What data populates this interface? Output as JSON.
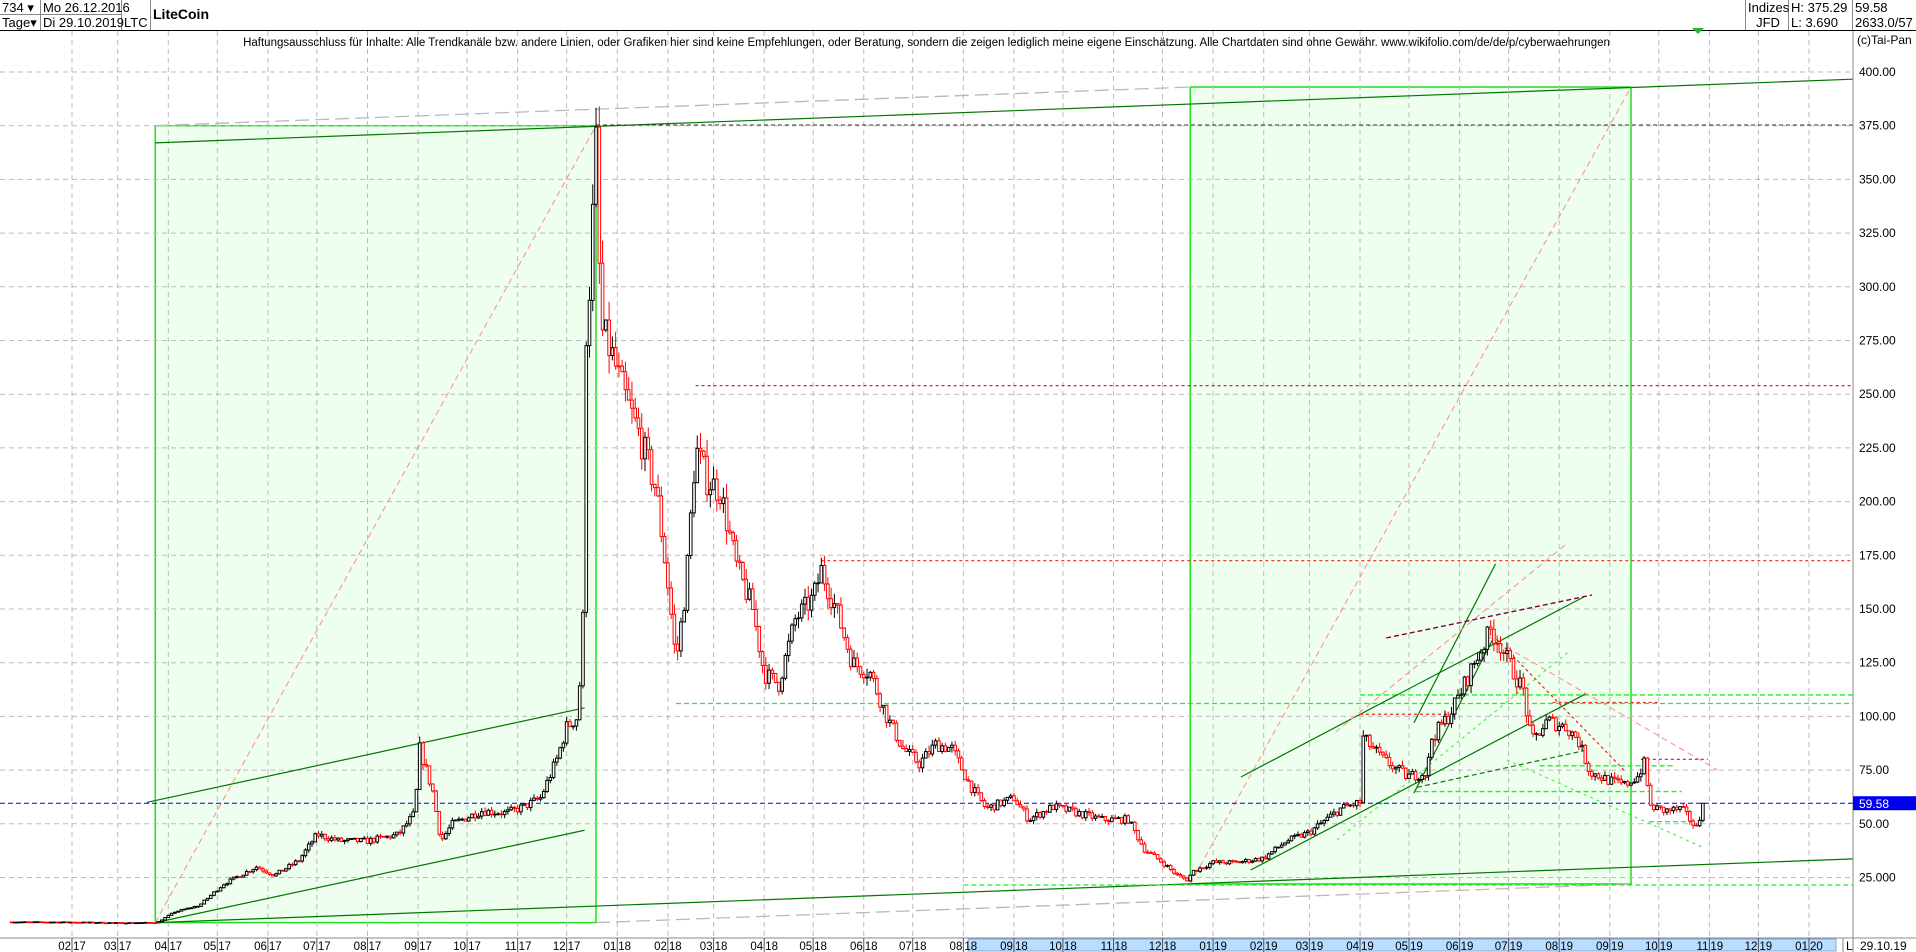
{
  "header": {
    "bars": "734",
    "bars_dropdown": "▾",
    "period": "Tage",
    "period_dropdown": "▾",
    "date_from": "Mo 26.12.2016",
    "date_to": "Di 29.10.2019",
    "symbol": "LTC",
    "title": "LiteCoin",
    "source_top": "Indizes",
    "source_bottom": "JFD",
    "high": "H: 375.29",
    "low": "L: 3.690",
    "last": "59.58",
    "info": "2633.0/57"
  },
  "disclaimer": "Haftungsausschluss für Inhalte: Alle Trendkanäle bzw. andere Linien, oder Grafiken hier sind keine Empfehlungen, oder Beratung, sondern die zeigen lediglich meine eigene Einschätzung. Alle Chartdaten sind ohne Gewähr.  www.wikifolio.com/de/de/p/cyberwaehrungen",
  "copyright": "(c)Tai-Pan",
  "xaxis": {
    "log_label": "L",
    "last_date": "29.10.19"
  },
  "colors": {
    "up": "#000000",
    "down": "#ff0000",
    "box_fill": "#efffef",
    "box_border": "#22dd22",
    "trend": "#007700",
    "last_price": "#0000ee",
    "grid": "#bbbbbb"
  },
  "chart_data": {
    "type": "candlestick",
    "title": "LiteCoin",
    "ylim": [
      0,
      400
    ],
    "yticks": [
      "400.00",
      "375.00",
      "350.00",
      "325.00",
      "300.00",
      "275.00",
      "250.00",
      "225.00",
      "200.00",
      "175.00",
      "150.00",
      "125.00",
      "100.00",
      "75.00",
      "50.00",
      "25.000"
    ],
    "ytick_values": [
      400,
      375,
      350,
      325,
      300,
      275,
      250,
      225,
      200,
      175,
      150,
      125,
      100,
      75,
      50,
      25
    ],
    "xrange": [
      "2016-12-26",
      "2020-01-31"
    ],
    "xticks": [
      [
        "02",
        "17"
      ],
      [
        "03",
        "17"
      ],
      [
        "04",
        "17"
      ],
      [
        "05",
        "17"
      ],
      [
        "06",
        "17"
      ],
      [
        "07",
        "17"
      ],
      [
        "08",
        "17"
      ],
      [
        "09",
        "17"
      ],
      [
        "10",
        "17"
      ],
      [
        "11",
        "17"
      ],
      [
        "12",
        "17"
      ],
      [
        "01",
        "18"
      ],
      [
        "02",
        "18"
      ],
      [
        "03",
        "18"
      ],
      [
        "04",
        "18"
      ],
      [
        "05",
        "18"
      ],
      [
        "06",
        "18"
      ],
      [
        "07",
        "18"
      ],
      [
        "08",
        "18"
      ],
      [
        "09",
        "18"
      ],
      [
        "10",
        "18"
      ],
      [
        "11",
        "18"
      ],
      [
        "12",
        "18"
      ],
      [
        "01",
        "19"
      ],
      [
        "02",
        "19"
      ],
      [
        "03",
        "19"
      ],
      [
        "04",
        "19"
      ],
      [
        "05",
        "19"
      ],
      [
        "06",
        "19"
      ],
      [
        "07",
        "19"
      ],
      [
        "08",
        "19"
      ],
      [
        "09",
        "19"
      ],
      [
        "10",
        "19"
      ],
      [
        "11",
        "19"
      ],
      [
        "12",
        "19"
      ],
      [
        "01",
        "20"
      ]
    ],
    "grid": true,
    "last_price": 59.58,
    "last_price_label": "59.58",
    "close_path": [
      [
        "2016-12-26",
        4.3
      ],
      [
        "2017-02-01",
        4.2
      ],
      [
        "2017-03-01",
        3.9
      ],
      [
        "2017-03-25",
        4.0
      ],
      [
        "2017-04-05",
        9
      ],
      [
        "2017-04-20",
        12
      ],
      [
        "2017-05-05",
        22
      ],
      [
        "2017-05-25",
        30
      ],
      [
        "2017-06-05",
        26
      ],
      [
        "2017-06-20",
        33
      ],
      [
        "2017-07-01",
        45
      ],
      [
        "2017-07-15",
        42
      ],
      [
        "2017-08-01",
        42
      ],
      [
        "2017-08-20",
        45
      ],
      [
        "2017-08-30",
        55
      ],
      [
        "2017-09-02",
        85
      ],
      [
        "2017-09-10",
        65
      ],
      [
        "2017-09-15",
        42
      ],
      [
        "2017-09-22",
        50
      ],
      [
        "2017-10-10",
        56
      ],
      [
        "2017-10-25",
        55
      ],
      [
        "2017-11-05",
        58
      ],
      [
        "2017-11-15",
        62
      ],
      [
        "2017-11-25",
        80
      ],
      [
        "2017-12-01",
        95
      ],
      [
        "2017-12-08",
        100
      ],
      [
        "2017-12-11",
        145
      ],
      [
        "2017-12-13",
        280
      ],
      [
        "2017-12-15",
        300
      ],
      [
        "2017-12-19",
        365
      ],
      [
        "2017-12-22",
        280
      ],
      [
        "2017-12-28",
        270
      ],
      [
        "2018-01-05",
        250
      ],
      [
        "2018-01-15",
        230
      ],
      [
        "2018-01-25",
        205
      ],
      [
        "2018-02-02",
        155
      ],
      [
        "2018-02-06",
        125
      ],
      [
        "2018-02-12",
        160
      ],
      [
        "2018-02-18",
        225
      ],
      [
        "2018-02-25",
        210
      ],
      [
        "2018-03-05",
        205
      ],
      [
        "2018-03-15",
        170
      ],
      [
        "2018-03-25",
        150
      ],
      [
        "2018-04-01",
        120
      ],
      [
        "2018-04-10",
        115
      ],
      [
        "2018-04-20",
        145
      ],
      [
        "2018-05-01",
        155
      ],
      [
        "2018-05-06",
        168
      ],
      [
        "2018-05-15",
        150
      ],
      [
        "2018-05-25",
        125
      ],
      [
        "2018-06-05",
        120
      ],
      [
        "2018-06-15",
        100
      ],
      [
        "2018-06-25",
        85
      ],
      [
        "2018-07-05",
        78
      ],
      [
        "2018-07-15",
        87
      ],
      [
        "2018-07-25",
        85
      ],
      [
        "2018-08-05",
        68
      ],
      [
        "2018-08-15",
        57
      ],
      [
        "2018-09-01",
        62
      ],
      [
        "2018-09-10",
        52
      ],
      [
        "2018-09-25",
        58
      ],
      [
        "2018-10-10",
        55
      ],
      [
        "2018-10-25",
        52
      ],
      [
        "2018-11-10",
        52
      ],
      [
        "2018-11-20",
        38
      ],
      [
        "2018-12-01",
        32
      ],
      [
        "2018-12-10",
        26
      ],
      [
        "2018-12-16",
        24
      ],
      [
        "2018-12-20",
        28
      ],
      [
        "2019-01-01",
        32
      ],
      [
        "2019-01-15",
        32
      ],
      [
        "2019-02-01",
        34
      ],
      [
        "2019-02-15",
        42
      ],
      [
        "2019-03-01",
        46
      ],
      [
        "2019-03-20",
        57
      ],
      [
        "2019-04-01",
        60
      ],
      [
        "2019-04-03",
        90
      ],
      [
        "2019-04-15",
        80
      ],
      [
        "2019-04-30",
        72
      ],
      [
        "2019-05-12",
        74
      ],
      [
        "2019-05-15",
        90
      ],
      [
        "2019-05-25",
        100
      ],
      [
        "2019-06-01",
        110
      ],
      [
        "2019-06-10",
        125
      ],
      [
        "2019-06-20",
        140
      ],
      [
        "2019-06-25",
        135
      ],
      [
        "2019-07-01",
        125
      ],
      [
        "2019-07-10",
        112
      ],
      [
        "2019-07-15",
        88
      ],
      [
        "2019-07-25",
        98
      ],
      [
        "2019-08-05",
        95
      ],
      [
        "2019-08-12",
        90
      ],
      [
        "2019-08-20",
        74
      ],
      [
        "2019-09-01",
        70
      ],
      [
        "2019-09-10",
        68
      ],
      [
        "2019-09-18",
        72
      ],
      [
        "2019-09-22",
        78
      ],
      [
        "2019-09-26",
        58
      ],
      [
        "2019-10-05",
        56
      ],
      [
        "2019-10-15",
        57
      ],
      [
        "2019-10-24",
        48
      ],
      [
        "2019-10-29",
        59.58
      ]
    ],
    "boxes": [
      {
        "from": [
          "2017-03-24",
          4
        ],
        "to": [
          "2017-12-19",
          375
        ]
      },
      {
        "from": [
          "2018-12-18",
          22
        ],
        "to": [
          "2019-09-14",
          393
        ]
      }
    ],
    "lines": [
      {
        "from": [
          "2017-03-24",
          367
        ],
        "to": [
          "2020-03-15",
          398
        ],
        "style": "trend"
      },
      {
        "from": [
          "2017-03-24",
          4
        ],
        "to": [
          "2020-03-15",
          35
        ],
        "style": "trend"
      },
      {
        "from": [
          "2017-03-19",
          60
        ],
        "to": [
          "2017-12-12",
          104
        ],
        "style": "trend"
      },
      {
        "from": [
          "2017-03-24",
          4
        ],
        "to": [
          "2017-12-12",
          47
        ],
        "style": "trend"
      },
      {
        "from": [
          "2017-03-24",
          4
        ],
        "to": [
          "2017-12-19",
          375
        ],
        "style": "pink-dash"
      },
      {
        "from": [
          "2018-12-18",
          22
        ],
        "to": [
          "2019-09-14",
          393
        ],
        "style": "pink-dash"
      },
      {
        "from": [
          "2017-03-24",
          375
        ],
        "to": [
          "2018-12-18",
          393
        ],
        "style": "grey-dash"
      },
      {
        "from": [
          "2017-12-19",
          4
        ],
        "to": [
          "2019-09-14",
          22
        ],
        "style": "grey-dash"
      },
      {
        "from": [
          "2017-12-19",
          375.3
        ],
        "to": [
          "2020-03-15",
          375.3
        ],
        "style": "black-dash"
      },
      {
        "from": [
          "2018-02-18",
          254
        ],
        "to": [
          "2020-03-15",
          254
        ],
        "style": "red-dot"
      },
      {
        "from": [
          "2018-05-06",
          172.5
        ],
        "to": [
          "2020-03-15",
          172.5
        ],
        "style": "red-dot"
      },
      {
        "from": [
          "2018-02-06",
          106
        ],
        "to": [
          "2020-03-15",
          106
        ],
        "style": "green-dash"
      },
      {
        "from": [
          "2019-04-01",
          110
        ],
        "to": [
          "2020-03-15",
          110
        ],
        "style": "green-dash"
      },
      {
        "from": [
          "2018-08-01",
          21.5
        ],
        "to": [
          "2020-03-15",
          21.5
        ],
        "style": "green-dash"
      },
      {
        "from": [
          "2019-01-18",
          71.8
        ],
        "to": [
          "2019-08-16",
          155.6
        ],
        "style": "trend"
      },
      {
        "from": [
          "2019-01-24",
          28.5
        ],
        "to": [
          "2019-08-17",
          110.4
        ],
        "style": "trend"
      },
      {
        "from": [
          "2019-05-04",
          97
        ],
        "to": [
          "2019-06-23",
          171
        ],
        "style": "trend"
      },
      {
        "from": [
          "2019-05-04",
          64.3
        ],
        "to": [
          "2019-06-23",
          138.4
        ],
        "style": "trend"
      },
      {
        "from": [
          "2019-04-17",
          136.5
        ],
        "to": [
          "2019-08-21",
          156.5
        ],
        "style": "maroon-dash"
      },
      {
        "from": [
          "2019-03-17",
          92.7
        ],
        "to": [
          "2019-08-06",
          180.6
        ],
        "style": "pink-dash"
      },
      {
        "from": [
          "2019-06-21",
          138
        ],
        "to": [
          "2019-09-11",
          74
        ],
        "style": "red-dot"
      },
      {
        "from": [
          "2019-06-19",
          137
        ],
        "to": [
          "2019-11-06",
          75
        ],
        "style": "pink-dash"
      },
      {
        "from": [
          "2019-03-18",
          42.5
        ],
        "to": [
          "2019-08-06",
          129.6
        ],
        "style": "lime-dot"
      },
      {
        "from": [
          "2019-06-30",
          79.7
        ],
        "to": [
          "2019-10-29",
          38.7
        ],
        "style": "lime-dot"
      },
      {
        "from": [
          "2019-05-06",
          67
        ],
        "to": [
          "2019-08-16",
          84
        ],
        "style": "darkgreen-dash"
      },
      {
        "from": [
          "2019-04-01",
          101
        ],
        "to": [
          "2019-05-28",
          101
        ],
        "style": "red-dot"
      },
      {
        "from": [
          "2019-09-20",
          80
        ],
        "to": [
          "2019-10-31",
          80
        ],
        "style": "red-dot"
      },
      {
        "from": [
          "2019-07-28",
          106.5
        ],
        "to": [
          "2019-10-01",
          106.5
        ],
        "style": "red-dot"
      },
      {
        "from": [
          "2019-05-05",
          65
        ],
        "to": [
          "2019-10-15",
          65
        ],
        "style": "green-dash"
      },
      {
        "from": [
          "2019-07-20",
          77
        ],
        "to": [
          "2019-10-10",
          77
        ],
        "style": "green-dash"
      },
      {
        "from": [
          "2019-09-25",
          51
        ],
        "to": [
          "2019-10-24",
          51
        ],
        "style": "green-dash"
      }
    ]
  }
}
